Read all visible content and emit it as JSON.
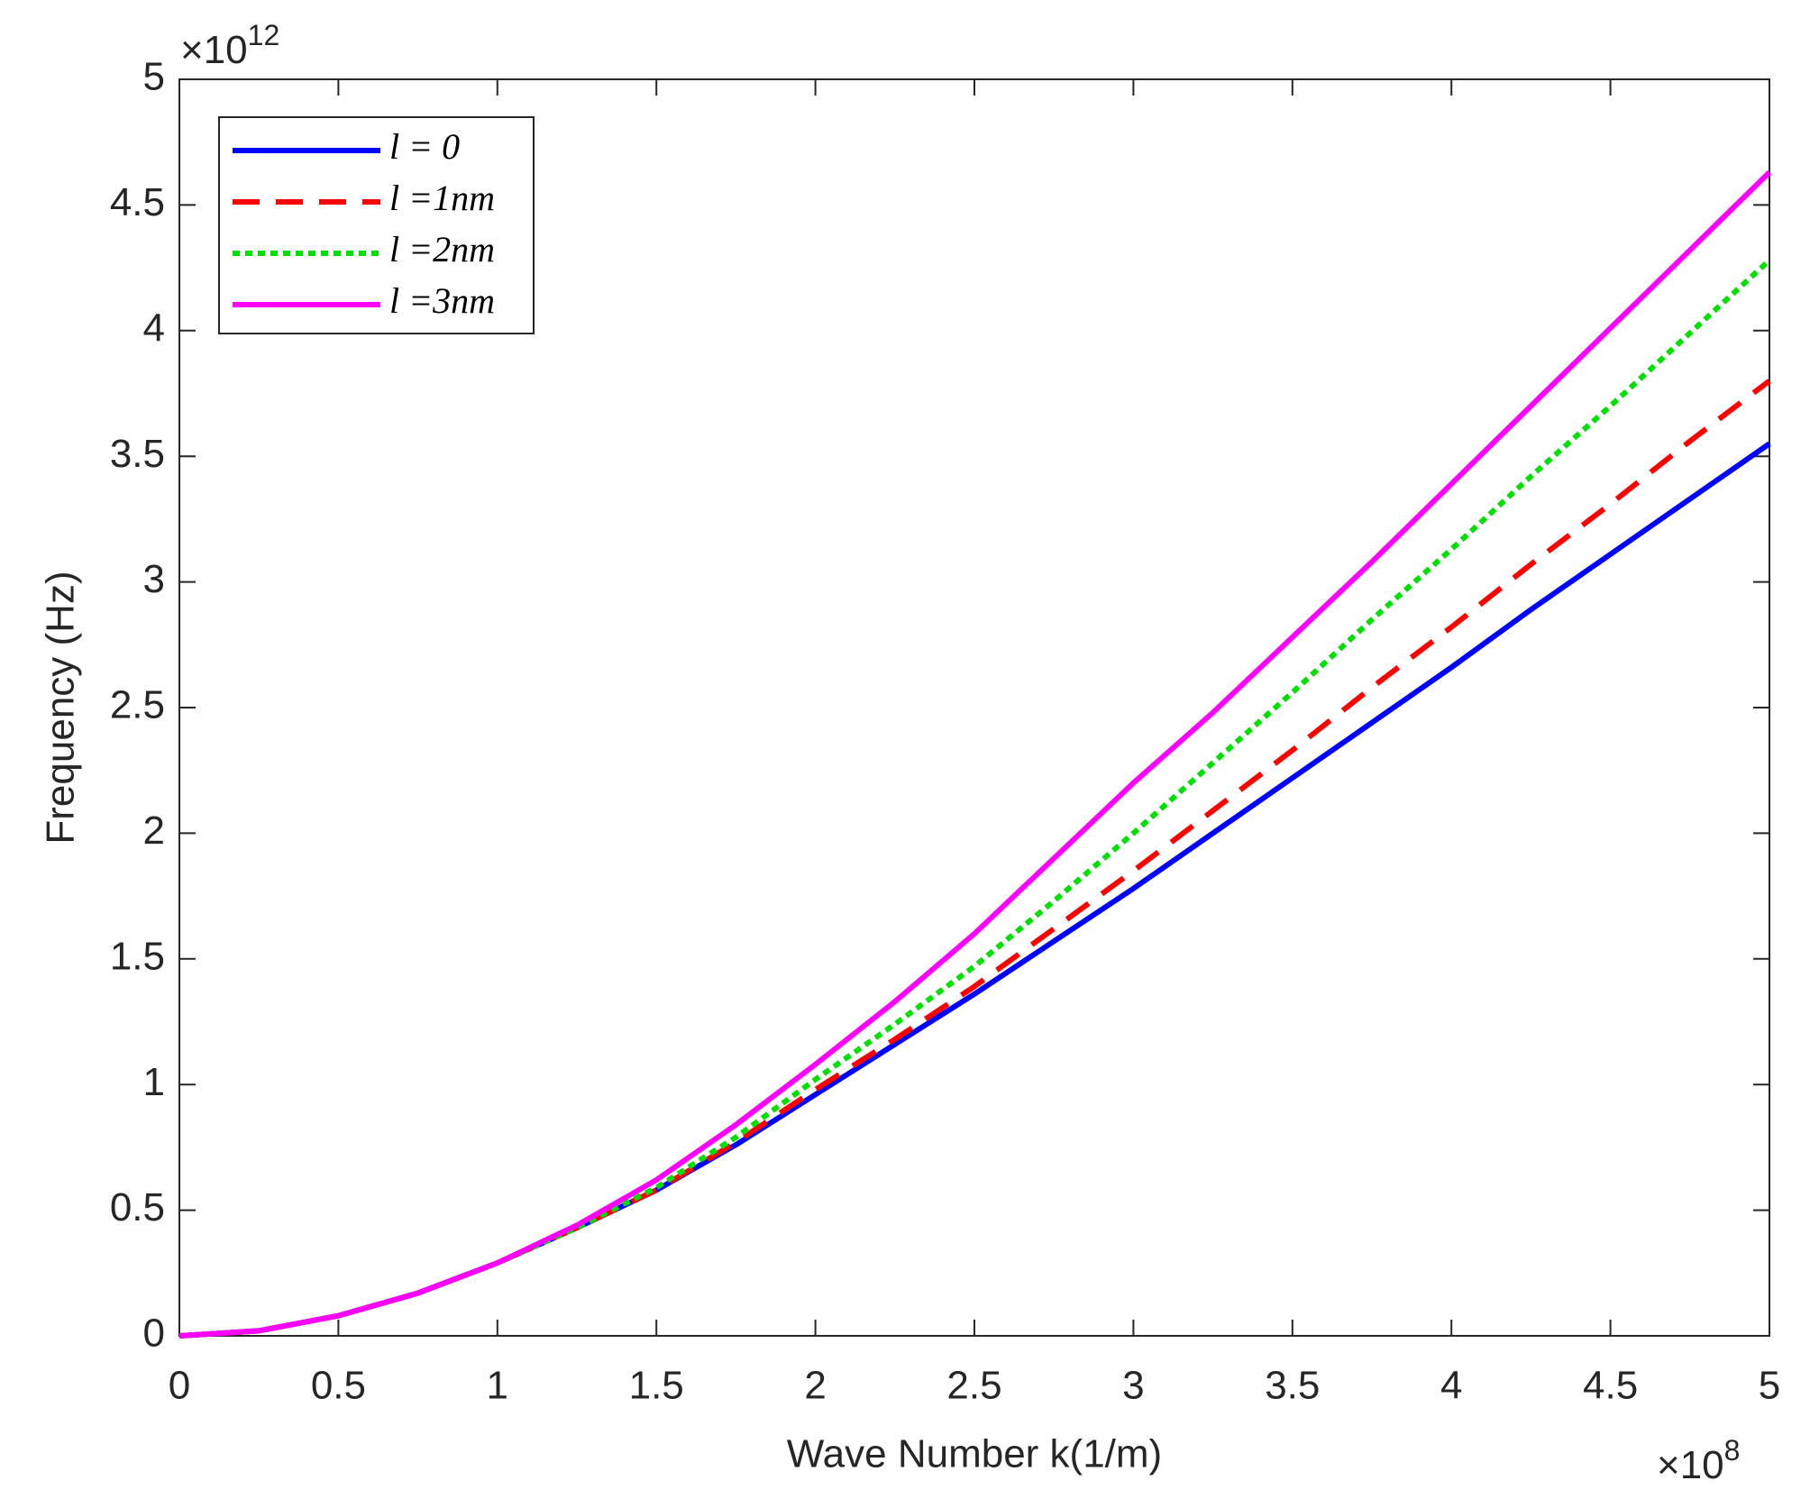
{
  "chart_data": {
    "type": "line",
    "xlabel": "Wave Number k(1/m)",
    "ylabel": "Frequency (Hz)",
    "x_multiplier": {
      "base": "×10",
      "power": "8"
    },
    "y_multiplier": {
      "base": "×10",
      "power": "12"
    },
    "x": [
      0,
      0.25,
      0.5,
      0.75,
      1,
      1.25,
      1.5,
      1.75,
      2,
      2.25,
      2.5,
      2.75,
      3,
      3.25,
      3.5,
      3.75,
      4,
      4.25,
      4.5,
      4.75,
      5
    ],
    "series": [
      {
        "name": "l = 0",
        "color": "#0000ff",
        "style": "solid",
        "values": [
          0,
          0.02,
          0.08,
          0.17,
          0.29,
          0.43,
          0.58,
          0.76,
          0.96,
          1.16,
          1.36,
          1.57,
          1.78,
          2.0,
          2.22,
          2.44,
          2.66,
          2.89,
          3.11,
          3.33,
          3.55
        ]
      },
      {
        "name": "l =1nm",
        "color": "#ff0000",
        "style": "dashed",
        "values": [
          0,
          0.02,
          0.08,
          0.17,
          0.29,
          0.43,
          0.58,
          0.77,
          0.98,
          1.18,
          1.39,
          1.62,
          1.85,
          2.09,
          2.33,
          2.58,
          2.82,
          3.07,
          3.31,
          3.56,
          3.8
        ]
      },
      {
        "name": "l =2nm",
        "color": "#00e000",
        "style": "dotted",
        "values": [
          0,
          0.02,
          0.08,
          0.17,
          0.29,
          0.43,
          0.59,
          0.79,
          1.02,
          1.24,
          1.47,
          1.73,
          2.0,
          2.28,
          2.56,
          2.85,
          3.13,
          3.42,
          3.7,
          3.99,
          4.28
        ]
      },
      {
        "name": "l =3nm",
        "color": "#ff00ff",
        "style": "solid",
        "values": [
          0,
          0.02,
          0.08,
          0.17,
          0.29,
          0.44,
          0.62,
          0.84,
          1.08,
          1.33,
          1.6,
          1.9,
          2.2,
          2.48,
          2.78,
          3.08,
          3.39,
          3.7,
          4.01,
          4.32,
          4.63
        ]
      }
    ],
    "xlim": [
      0,
      5
    ],
    "ylim": [
      0,
      5
    ],
    "xticks": [
      0,
      0.5,
      1,
      1.5,
      2,
      2.5,
      3,
      3.5,
      4,
      4.5,
      5
    ],
    "yticks": [
      0,
      0.5,
      1,
      1.5,
      2,
      2.5,
      3,
      3.5,
      4,
      4.5,
      5
    ],
    "grid": false,
    "legend": "upper left"
  }
}
